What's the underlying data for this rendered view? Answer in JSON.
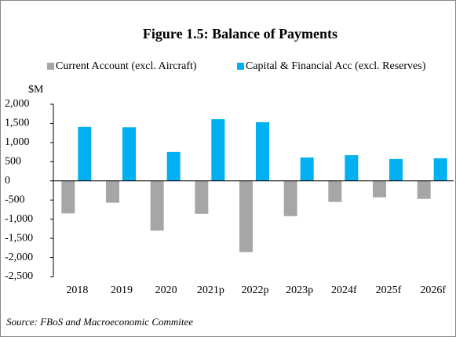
{
  "chart_data": {
    "type": "bar",
    "title": "Figure 1.5: Balance of Payments",
    "ylabel": "$M",
    "source": "Source: FBoS and Macroeconomic Commitee",
    "categories": [
      "2018",
      "2019",
      "2020",
      "2021p",
      "2022p",
      "2023p",
      "2024f",
      "2025f",
      "2026f"
    ],
    "series": [
      {
        "name": "Current Account (excl. Aircraft)",
        "color": "#a6a6a6",
        "values": [
          -850,
          -570,
          -1300,
          -860,
          -1860,
          -920,
          -550,
          -430,
          -470
        ]
      },
      {
        "name": "Capital & Financial Acc (excl. Reserves)",
        "color": "#00b0f0",
        "values": [
          1410,
          1400,
          755,
          1610,
          1530,
          610,
          670,
          570,
          590
        ]
      }
    ],
    "ylim": [
      -2500,
      2000
    ],
    "yticks": [
      {
        "value": 2000,
        "label": "2,000"
      },
      {
        "value": 1500,
        "label": "1,500"
      },
      {
        "value": 1000,
        "label": "1,000"
      },
      500,
      0,
      -500,
      {
        "value": -1000,
        "label": "-1,000"
      },
      {
        "value": -1500,
        "label": "-1,500"
      },
      {
        "value": -2000,
        "label": "-2,000"
      },
      {
        "value": -2500,
        "label": "-2,500"
      }
    ],
    "legend": "top",
    "grid": false
  }
}
